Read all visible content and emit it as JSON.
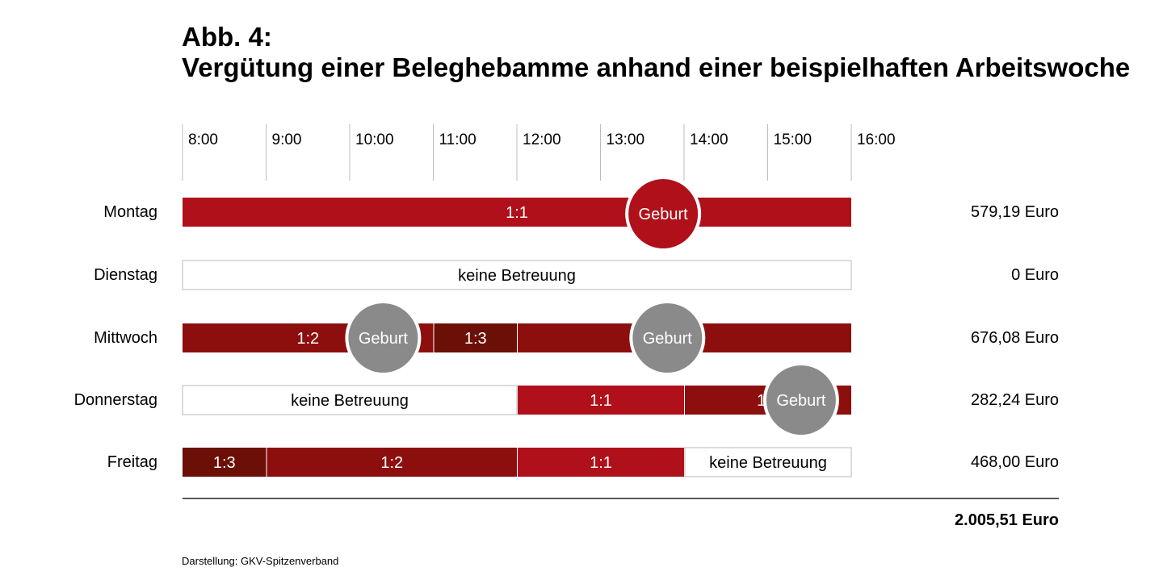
{
  "title_line1": "Abb. 4:",
  "title_line2": "Vergütung einer Beleghebamme anhand einer beispielhaften Arbeitswoche",
  "source": "Darstellung: GKV-Spitzenverband",
  "colors": {
    "1:1": "#b0101a",
    "1:2": "#8c0f0e",
    "1:3": "#6b0f07",
    "none": "#ffffff",
    "birth_red": "#b0101a",
    "birth_gray": "#8a8a8a",
    "grid": "#bdbdbd"
  },
  "chart_data": {
    "type": "timeline",
    "time_ticks": [
      "8:00",
      "9:00",
      "10:00",
      "11:00",
      "12:00",
      "13:00",
      "14:00",
      "15:00",
      "16:00"
    ],
    "x_range": [
      8,
      16
    ],
    "days": [
      {
        "day": "Montag",
        "amount": "579,19 Euro",
        "segments": [
          {
            "start": 8.0,
            "end": 16.0,
            "label": "1:1",
            "type": "1:1"
          }
        ],
        "births": [
          {
            "time": 13.75,
            "label": "Geburt",
            "color": "birth_red"
          }
        ]
      },
      {
        "day": "Dienstag",
        "amount": "0 Euro",
        "segments": [
          {
            "start": 8.0,
            "end": 16.0,
            "label": "keine Betreuung",
            "type": "none"
          }
        ],
        "births": []
      },
      {
        "day": "Mittwoch",
        "amount": "676,08 Euro",
        "segments": [
          {
            "start": 8.0,
            "end": 11.0,
            "label": "1:2",
            "type": "1:2"
          },
          {
            "start": 11.0,
            "end": 12.0,
            "label": "1:3",
            "type": "1:3"
          },
          {
            "start": 12.0,
            "end": 16.0,
            "label": "1:2",
            "type": "1:2"
          }
        ],
        "births": [
          {
            "time": 10.4,
            "label": "Geburt",
            "color": "birth_gray"
          },
          {
            "time": 13.8,
            "label": "Geburt",
            "color": "birth_gray"
          }
        ]
      },
      {
        "day": "Donnerstag",
        "amount": "282,24 Euro",
        "segments": [
          {
            "start": 8.0,
            "end": 12.0,
            "label": "keine Betreuung",
            "type": "none"
          },
          {
            "start": 12.0,
            "end": 14.0,
            "label": "1:1",
            "type": "1:1"
          },
          {
            "start": 14.0,
            "end": 16.0,
            "label": "1:2",
            "type": "1:2"
          }
        ],
        "births": [
          {
            "time": 15.4,
            "label": "Geburt",
            "color": "birth_gray"
          }
        ]
      },
      {
        "day": "Freitag",
        "amount": "468,00 Euro",
        "segments": [
          {
            "start": 8.0,
            "end": 9.0,
            "label": "1:3",
            "type": "1:3"
          },
          {
            "start": 9.0,
            "end": 12.0,
            "label": "1:2",
            "type": "1:2"
          },
          {
            "start": 12.0,
            "end": 14.0,
            "label": "1:1",
            "type": "1:1"
          },
          {
            "start": 14.0,
            "end": 16.0,
            "label": "keine Betreuung",
            "type": "none"
          }
        ],
        "births": []
      }
    ],
    "total": "2.005,51 Euro"
  }
}
